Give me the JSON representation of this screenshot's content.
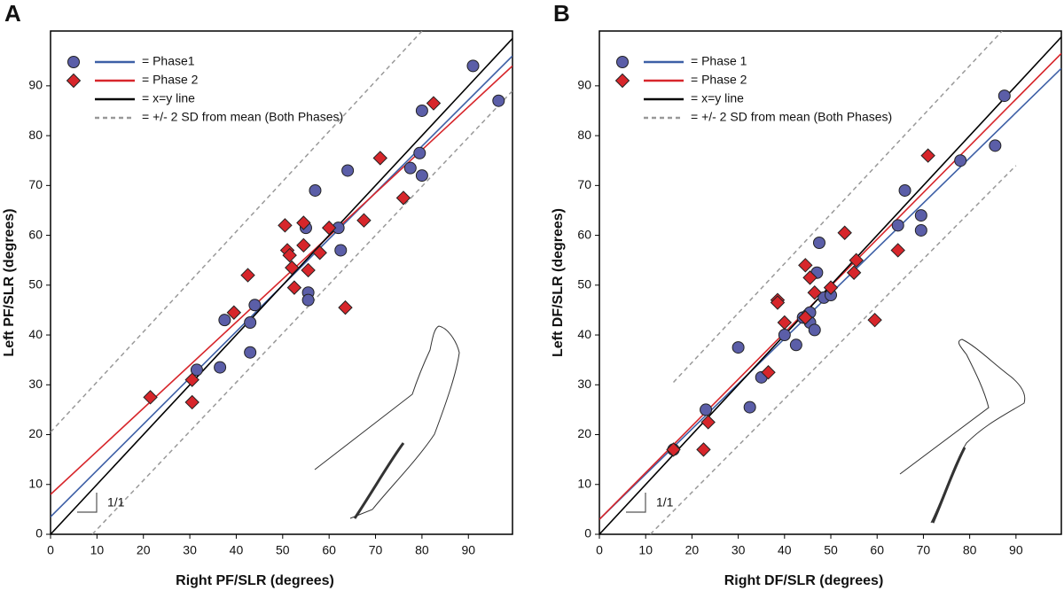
{
  "chart_data": [
    {
      "type": "scatter",
      "panel_label": "A",
      "xlabel": "Right PF/SLR (degrees)",
      "ylabel": "Left PF/SLR (degrees)",
      "xlim": [
        0,
        99.5
      ],
      "ylim": [
        0,
        101
      ],
      "xticks": [
        0,
        10,
        20,
        30,
        40,
        50,
        60,
        70,
        80,
        90
      ],
      "yticks": [
        0,
        10,
        20,
        30,
        40,
        50,
        60,
        70,
        80,
        90
      ],
      "series": [
        {
          "marker": "circle",
          "color": "#5b5ea8",
          "x": [
            31.5,
            36.5,
            37.5,
            43,
            43,
            44,
            55,
            55.5,
            55.5,
            57,
            62,
            62.5,
            64,
            77.5,
            79.5,
            80,
            80,
            91,
            96.5
          ],
          "y": [
            33,
            33.5,
            43,
            42.5,
            36.5,
            46,
            61.5,
            48.5,
            47,
            69,
            61.5,
            57,
            73,
            73.5,
            76.5,
            85,
            72,
            94,
            87
          ]
        },
        {
          "marker": "diamond",
          "color": "#d7262b",
          "x": [
            21.5,
            30.5,
            30.5,
            39.5,
            42.5,
            50.5,
            51,
            51.5,
            52,
            52.5,
            54.5,
            54.5,
            55.5,
            58,
            60,
            63.5,
            67.5,
            71,
            76,
            82.5
          ],
          "y": [
            27.5,
            31,
            26.5,
            44.5,
            52,
            62,
            57,
            56,
            53.5,
            49.5,
            58,
            62.5,
            53,
            56.5,
            61.5,
            45.5,
            63,
            75.5,
            67.5,
            86.5
          ]
        }
      ],
      "lines": [
        {
          "name": "= Phase1",
          "color": "#3d5fa6",
          "x": [
            0,
            99.5
          ],
          "y": [
            3.5,
            96
          ]
        },
        {
          "name": "= Phase 2",
          "color": "#d7262b",
          "x": [
            0,
            99.5
          ],
          "y": [
            8,
            94
          ]
        },
        {
          "name": "= x=y line",
          "color": "#000000",
          "x": [
            0,
            99.5
          ],
          "y": [
            0,
            99.5
          ]
        },
        {
          "name": "= +/- 2 SD from mean (Both Phases)",
          "color": "#999999",
          "dash": true,
          "x": [
            0,
            80
          ],
          "y": [
            20.5,
            101
          ]
        },
        {
          "color": "#999999",
          "dash": true,
          "x": [
            9,
            99.5
          ],
          "y": [
            0,
            89
          ]
        }
      ],
      "annotation": "1/1"
    },
    {
      "type": "scatter",
      "panel_label": "B",
      "xlabel": "Right DF/SLR (degrees)",
      "ylabel": "Left DF/SLR (degrees)",
      "xlim": [
        0,
        99.8
      ],
      "ylim": [
        0,
        101
      ],
      "xticks": [
        0,
        10,
        20,
        30,
        40,
        50,
        60,
        70,
        80,
        90
      ],
      "yticks": [
        0,
        10,
        20,
        30,
        40,
        50,
        60,
        70,
        80,
        90
      ],
      "series": [
        {
          "marker": "circle",
          "color": "#5b5ea8",
          "x": [
            16,
            23,
            30,
            32.5,
            35,
            40,
            42.5,
            44,
            45,
            45.5,
            45.5,
            46.5,
            47,
            47.5,
            48.5,
            50,
            64.5,
            66,
            69.5,
            69.5,
            78,
            85.5,
            87.5
          ],
          "y": [
            17,
            25,
            37.5,
            25.5,
            31.5,
            40,
            38,
            43.5,
            44,
            44.5,
            42.5,
            41,
            52.5,
            58.5,
            47.5,
            48,
            62,
            69,
            64,
            61,
            75,
            78,
            88
          ]
        },
        {
          "marker": "diamond",
          "color": "#d7262b",
          "x": [
            16,
            22.5,
            23.5,
            36.5,
            38.5,
            38.5,
            40,
            44.5,
            44.5,
            45.5,
            46.5,
            50,
            53,
            55,
            55.5,
            59.5,
            64.5,
            71
          ],
          "y": [
            17,
            17,
            22.5,
            32.5,
            47,
            46.5,
            42.5,
            54,
            43.5,
            51.5,
            48.5,
            49.5,
            60.5,
            52.5,
            55,
            43,
            57,
            76
          ]
        }
      ],
      "lines": [
        {
          "name": "= Phase 1",
          "color": "#3d5fa6",
          "x": [
            0,
            99.8
          ],
          "y": [
            3,
            93.5
          ]
        },
        {
          "name": "= Phase 2",
          "color": "#d7262b",
          "x": [
            0,
            99.8
          ],
          "y": [
            3,
            96.5
          ]
        },
        {
          "name": "= x=y line",
          "color": "#000000",
          "x": [
            0,
            99.8
          ],
          "y": [
            0,
            99.8
          ]
        },
        {
          "name": "= +/- 2 SD from mean  (Both Phases)",
          "color": "#999999",
          "dash": true,
          "x": [
            16,
            87
          ],
          "y": [
            30.5,
            101
          ]
        },
        {
          "color": "#999999",
          "dash": true,
          "x": [
            11,
            90
          ],
          "y": [
            0,
            74
          ]
        }
      ],
      "annotation": "1/1"
    }
  ]
}
